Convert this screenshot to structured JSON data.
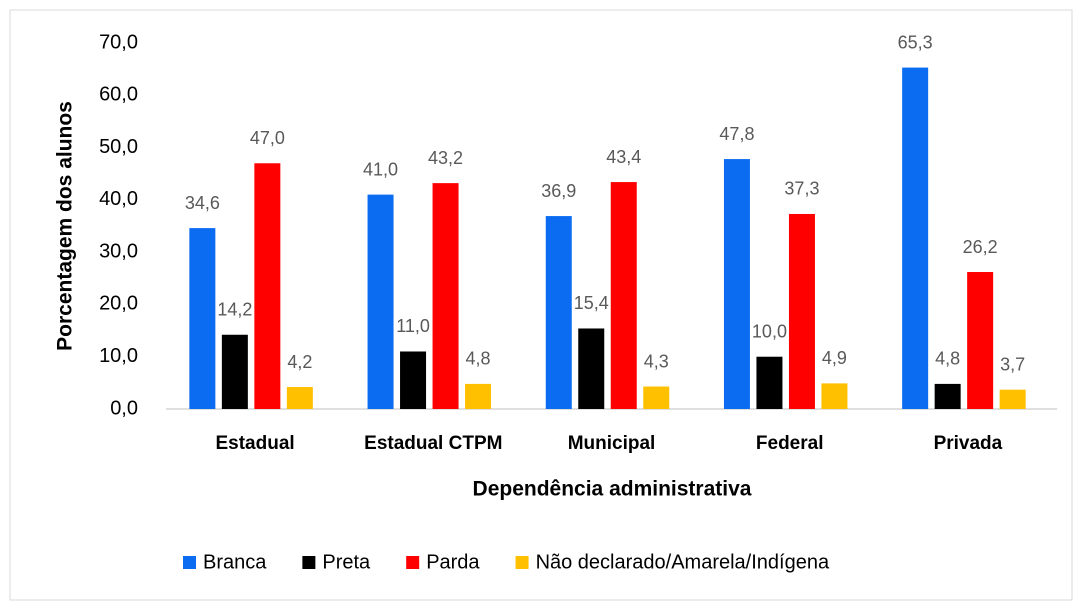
{
  "chart_data": {
    "type": "bar",
    "xlabel": "Dependência administrativa",
    "ylabel": "Porcentagem dos alunos",
    "categories": [
      "Estadual",
      "Estadual CTPM",
      "Municipal",
      "Federal",
      "Privada"
    ],
    "series": [
      {
        "name": "Branca",
        "color": "#0b6cf2",
        "values": [
          34.6,
          41.0,
          36.9,
          47.8,
          65.3
        ],
        "value_labels": [
          "34,6",
          "41,0",
          "36,9",
          "47,8",
          "65,3"
        ]
      },
      {
        "name": "Preta",
        "color": "#000000",
        "values": [
          14.2,
          11.0,
          15.4,
          10.0,
          4.8
        ],
        "value_labels": [
          "14,2",
          "11,0",
          "15,4",
          "10,0",
          "4,8"
        ]
      },
      {
        "name": "Parda",
        "color": "#ff0000",
        "values": [
          47.0,
          43.2,
          43.4,
          37.3,
          26.2
        ],
        "value_labels": [
          "47,0",
          "43,2",
          "43,4",
          "37,3",
          "26,2"
        ]
      },
      {
        "name": "Não declarado/Amarela/Indígena",
        "color": "#ffc000",
        "values": [
          4.2,
          4.8,
          4.3,
          4.9,
          3.7
        ],
        "value_labels": [
          "4,2",
          "4,8",
          "4,3",
          "4,9",
          "3,7"
        ]
      }
    ],
    "ylim": [
      0,
      70
    ],
    "yticks": [
      {
        "value": 0,
        "label": "0,0"
      },
      {
        "value": 10,
        "label": "10,0"
      },
      {
        "value": 20,
        "label": "20,0"
      },
      {
        "value": 30,
        "label": "30,0"
      },
      {
        "value": 40,
        "label": "40,0"
      },
      {
        "value": 50,
        "label": "50,0"
      },
      {
        "value": 60,
        "label": "60,0"
      },
      {
        "value": 70,
        "label": "70,0"
      }
    ],
    "legend": "bottom"
  }
}
